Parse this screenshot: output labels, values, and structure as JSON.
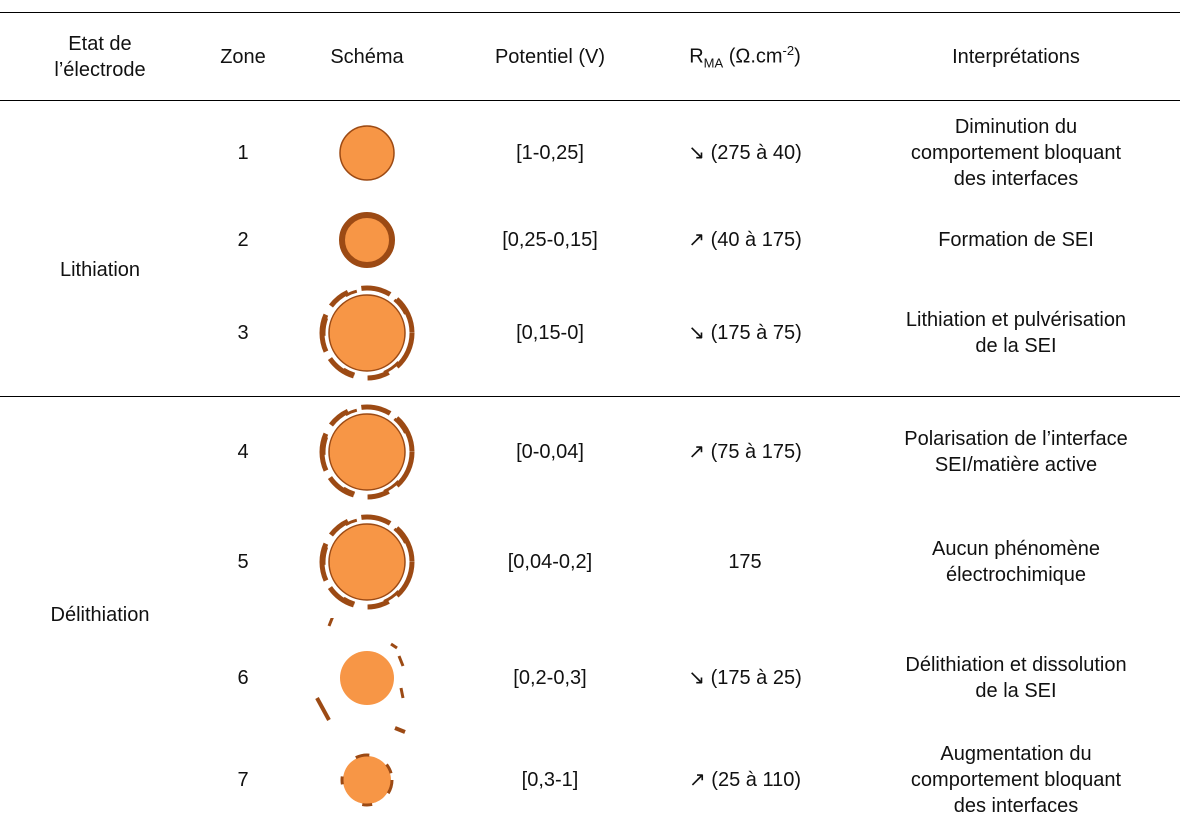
{
  "header": {
    "state": [
      "Etat de",
      "l’électrode"
    ],
    "zone": "Zone",
    "schema": "Schéma",
    "potential": "Potentiel (V)",
    "resistance": {
      "symbol": "R",
      "subscript": "MA",
      "unit": "(Ω.cm",
      "superscript": "-2",
      "close": ")"
    },
    "interpretation": "Interprétations"
  },
  "groups": [
    {
      "label": "Lithiation",
      "rows": [
        {
          "zone": "1",
          "potential": "[1-0,25]",
          "resistance": "↘ (275 à 40)",
          "interpretation": [
            "Diminution du",
            "comportement bloquant",
            "des interfaces"
          ]
        },
        {
          "zone": "2",
          "potential": "[0,25-0,15]",
          "resistance": "↗ (40 à 175)",
          "interpretation": [
            "Formation de SEI"
          ]
        },
        {
          "zone": "3",
          "potential": "[0,15-0]",
          "resistance": "↘ (175 à 75)",
          "interpretation": [
            "Lithiation et pulvérisation",
            "de la SEI"
          ]
        }
      ]
    },
    {
      "label": "Délithiation",
      "rows": [
        {
          "zone": "4",
          "potential": "[0-0,04]",
          "resistance": "↗ (75 à 175)",
          "interpretation": [
            "Polarisation de l’interface",
            "SEI/matière active"
          ]
        },
        {
          "zone": "5",
          "potential": "[0,04-0,2]",
          "resistance": "175",
          "interpretation": [
            "Aucun phénomène",
            "électrochimique"
          ]
        },
        {
          "zone": "6",
          "potential": "[0,2-0,3]",
          "resistance": "↘ (175 à 25)",
          "interpretation": [
            "Délithiation et dissolution",
            "de la SEI"
          ]
        },
        {
          "zone": "7",
          "potential": "[0,3-1]",
          "resistance": "↗ (25 à 110)",
          "interpretation": [
            "Augmentation du",
            "comportement bloquant",
            "des interfaces"
          ]
        }
      ]
    }
  ]
}
